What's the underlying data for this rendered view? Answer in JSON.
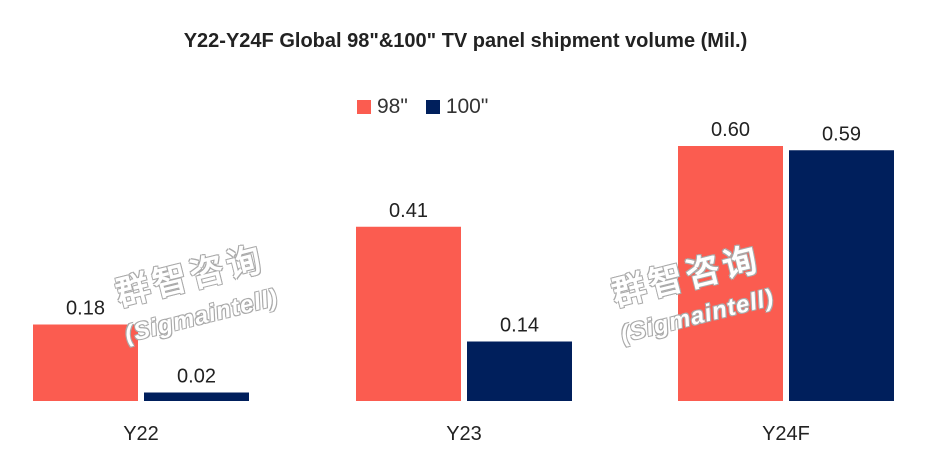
{
  "title": "Y22-Y24F Global 98\"&100\" TV panel shipment volume (Mil.)",
  "colors": {
    "s98": "#fb5c50",
    "s100": "#001f5c"
  },
  "watermark": {
    "cn": "群智咨询",
    "en": "(Sigmaintell)"
  },
  "chart_data": {
    "type": "bar",
    "title": "Y22-Y24F Global 98\"&100\" TV panel shipment volume (Mil.)",
    "categories": [
      "Y22",
      "Y23",
      "Y24F"
    ],
    "series": [
      {
        "name": "98\"",
        "values": [
          0.18,
          0.41,
          0.6
        ],
        "labels": [
          "0.18",
          "0.41",
          "0.60"
        ]
      },
      {
        "name": "100\"",
        "values": [
          0.02,
          0.14,
          0.59
        ],
        "labels": [
          "0.02",
          "0.14",
          "0.59"
        ]
      }
    ],
    "ylim": [
      0,
      0.6
    ],
    "grid": false,
    "legend": "top-center"
  }
}
